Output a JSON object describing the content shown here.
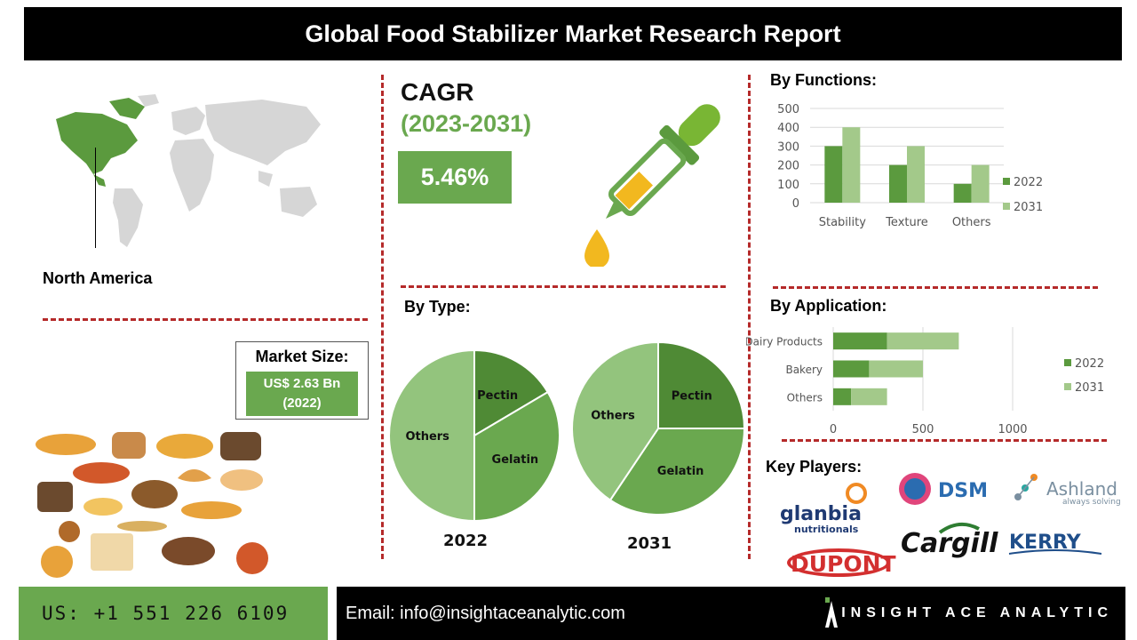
{
  "title": "Global Food Stabilizer Market Research Report",
  "region": {
    "label": "North America"
  },
  "cagr": {
    "title": "CAGR",
    "years": "(2023-2031)",
    "value": "5.46%"
  },
  "market_size": {
    "label": "Market Size:",
    "value_line1": "US$ 2.63 Bn",
    "value_line2": "(2022)"
  },
  "sections": {
    "functions": "By Functions:",
    "type": "By Type:",
    "application": "By Application:",
    "players": "Key Players:"
  },
  "key_players": [
    "glanbia",
    "nutritionals",
    "DSM",
    "Ashland",
    "always solving",
    "Cargill",
    "KERRY",
    "DUPONT"
  ],
  "footer": {
    "phone": "US: +1 551 226 6109",
    "email": "Email: info@insightaceanalytic.com",
    "brand": "INSIGHT ACE ANALYTIC"
  },
  "colors": {
    "dark_green": "#5b9a3e",
    "light_green": "#a3c98a",
    "accent_green": "#6aa84f",
    "dash_red": "#b52a2a"
  },
  "chart_data": [
    {
      "id": "functions",
      "type": "bar",
      "categories": [
        "Stability",
        "Texture",
        "Others"
      ],
      "series": [
        {
          "name": "2022",
          "values": [
            300,
            200,
            100
          ]
        },
        {
          "name": "2031",
          "values": [
            400,
            300,
            200
          ]
        }
      ],
      "ylim": [
        0,
        500
      ],
      "yticks": [
        "0",
        "100",
        "200",
        "300",
        "400",
        "500"
      ],
      "legend": "right"
    },
    {
      "id": "type",
      "type": "pie",
      "pies": [
        {
          "label": "2022",
          "slices": [
            {
              "name": "Pectin",
              "value": 16.5
            },
            {
              "name": "Gelatin",
              "value": 33.5
            },
            {
              "name": "Others",
              "value": 50
            }
          ]
        },
        {
          "label": "2031",
          "slices": [
            {
              "name": "Pectin",
              "value": 25
            },
            {
              "name": "Gelatin",
              "value": 34.4
            },
            {
              "name": "Others",
              "value": 40.6
            }
          ]
        }
      ]
    },
    {
      "id": "application",
      "type": "bar",
      "orientation": "horizontal",
      "stacked": true,
      "categories": [
        "Dairy Products",
        "Bakery",
        "Others"
      ],
      "series": [
        {
          "name": "2022",
          "values": [
            300,
            200,
            100
          ]
        },
        {
          "name": "2031",
          "values": [
            400,
            300,
            200
          ]
        }
      ],
      "xlim": [
        0,
        1000
      ],
      "xticks": [
        "0",
        "500",
        "1000"
      ],
      "legend": "right"
    }
  ]
}
